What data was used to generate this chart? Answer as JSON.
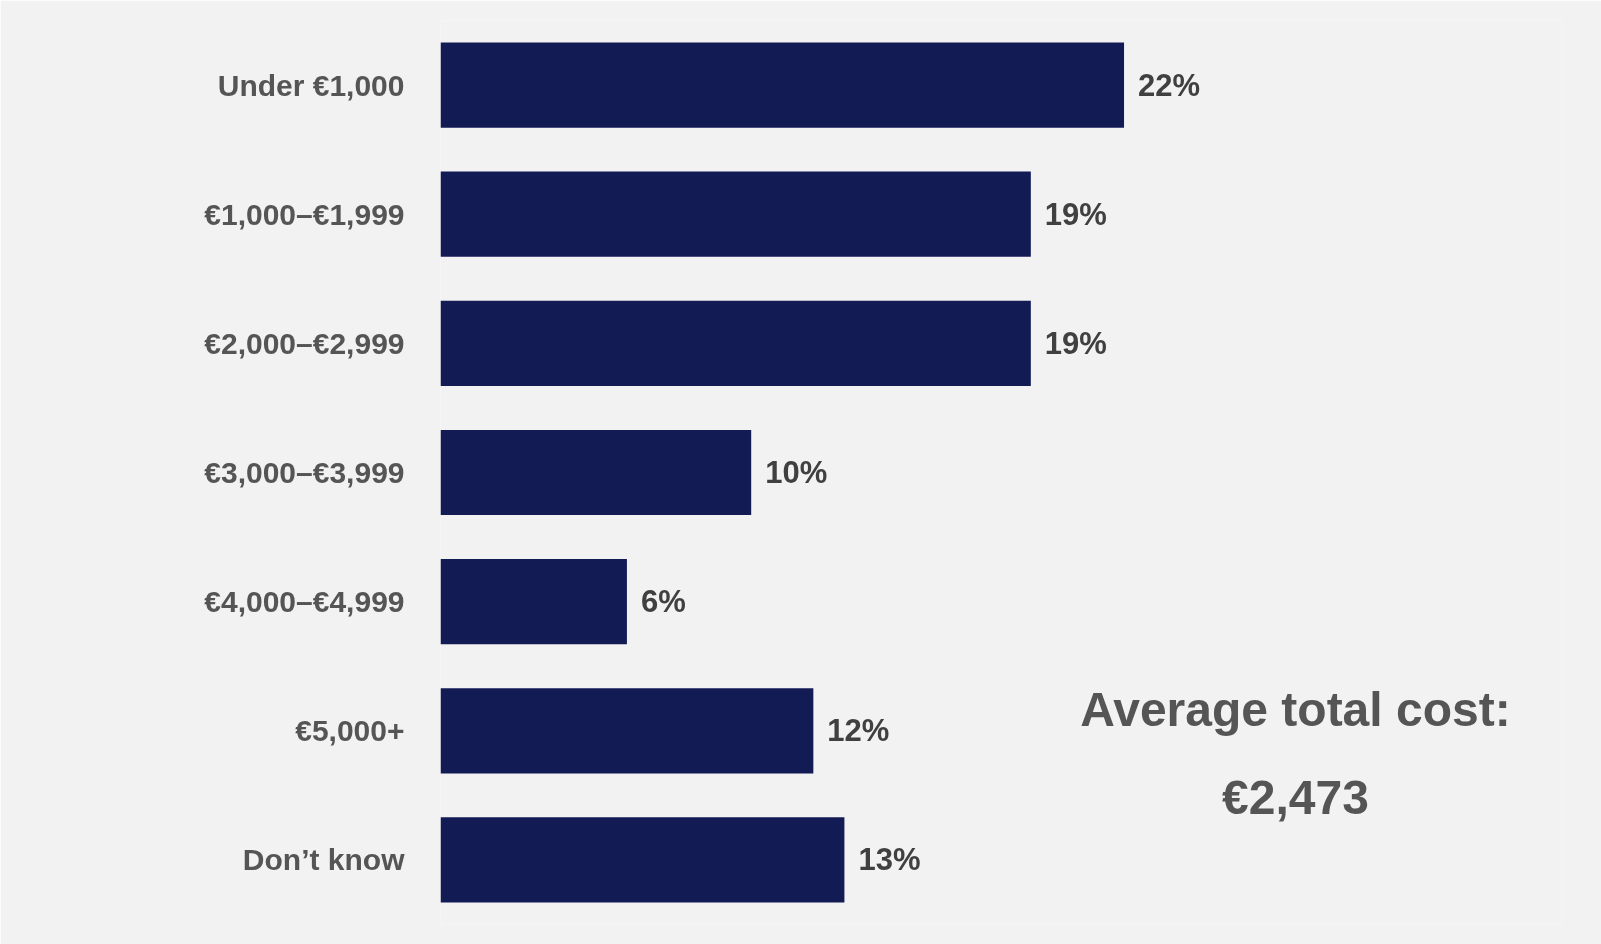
{
  "chart_data": {
    "type": "bar",
    "orientation": "horizontal",
    "categories": [
      "Under €1,000",
      "€1,000–€1,999",
      "€2,000–€2,999",
      "€3,000–€3,999",
      "€4,000–€4,999",
      "€5,000+",
      "Don’t know"
    ],
    "values": [
      22,
      19,
      19,
      10,
      6,
      12,
      13
    ],
    "value_labels": [
      "22%",
      "19%",
      "19%",
      "10%",
      "6%",
      "12%",
      "13%"
    ],
    "color": "#131b55",
    "annotations": [
      "Average total cost:\n€2,473"
    ]
  }
}
